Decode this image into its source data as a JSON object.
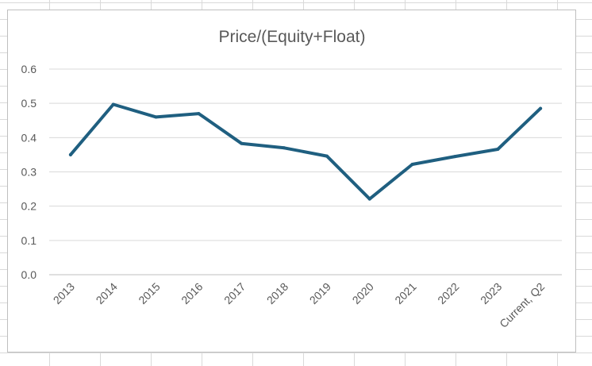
{
  "chart_data": {
    "type": "line",
    "title": "Price/(Equity+Float)",
    "xlabel": "",
    "ylabel": "",
    "categories": [
      "2013",
      "2014",
      "2015",
      "2016",
      "2017",
      "2018",
      "2019",
      "2020",
      "2021",
      "2022",
      "2023",
      "Current, Q2"
    ],
    "series": [
      {
        "name": "Price/(Equity+Float)",
        "color": "#1f5f80",
        "values": [
          0.35,
          0.497,
          0.46,
          0.47,
          0.383,
          0.37,
          0.346,
          0.221,
          0.322,
          0.345,
          0.366,
          0.485
        ]
      }
    ],
    "ylim": [
      0,
      0.6
    ],
    "yticks": [
      "0.0",
      "0.1",
      "0.2",
      "0.3",
      "0.4",
      "0.5",
      "0.6"
    ],
    "grid": true,
    "legend": "none"
  }
}
